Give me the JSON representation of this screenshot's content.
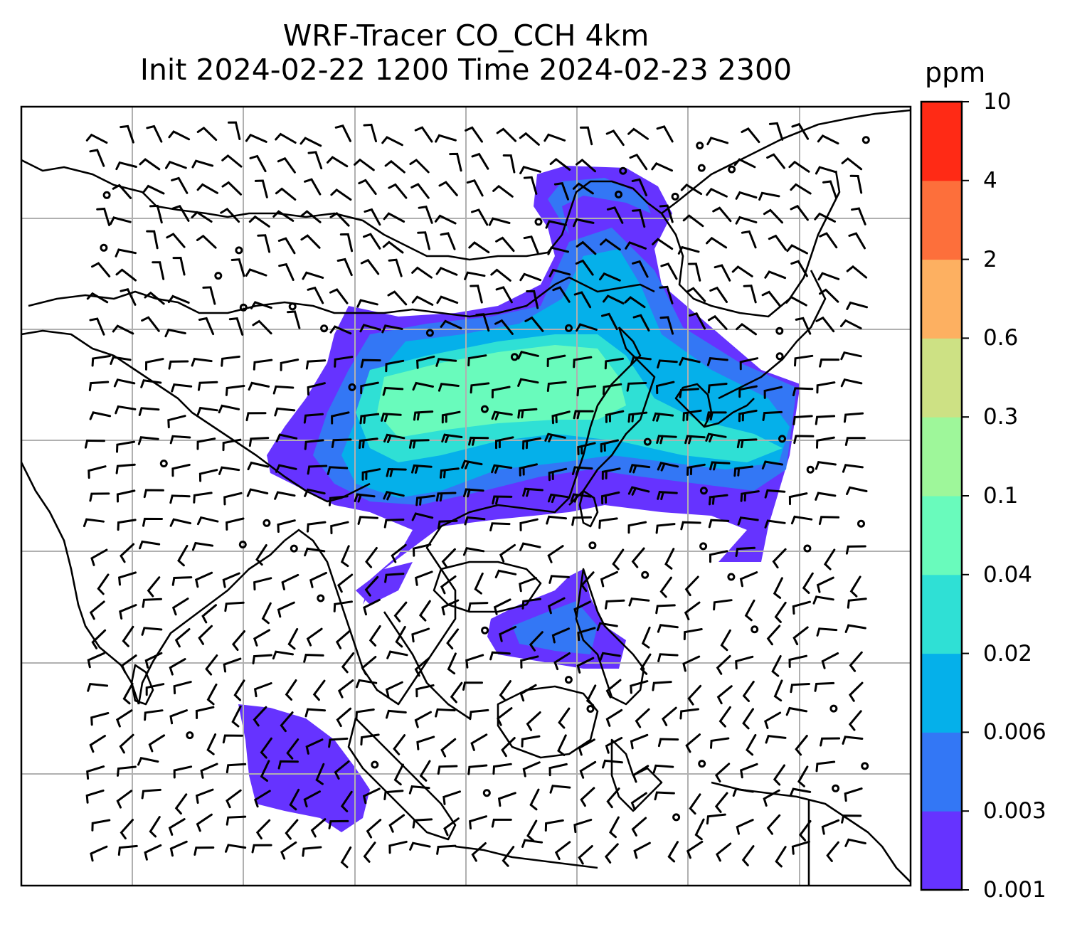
{
  "title_line1": "WRF-Tracer CO_CCH 4km",
  "title_line2": "Init 2024-02-22 1200 Time 2024-02-23 2300",
  "colorbar": {
    "unit": "ppm",
    "levels": [
      "0.001",
      "0.003",
      "0.006",
      "0.02",
      "0.04",
      "0.1",
      "0.3",
      "0.6",
      "2",
      "4",
      "10"
    ],
    "colors": [
      "#6633ff",
      "#3377f5",
      "#05b0ea",
      "#2fe0d5",
      "#69fbbc",
      "#9ef79a",
      "#cde184",
      "#fdb061",
      "#fd6f3b",
      "#ff2a15"
    ]
  },
  "map": {
    "grid": true,
    "field_color_low": "#6633ff",
    "coastline_color": "#000000"
  }
}
